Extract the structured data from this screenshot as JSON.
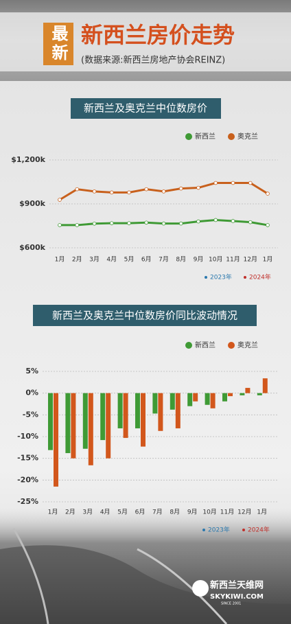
{
  "header": {
    "badge": "最新",
    "title": "新西兰房价走势",
    "subtitle": "(数据来源:新西兰房地产协会REINZ)"
  },
  "chart_data": [
    {
      "type": "line",
      "title": "新西兰及奥克兰中位数房价",
      "categories": [
        "1月",
        "2月",
        "3月",
        "4月",
        "5月",
        "6月",
        "7月",
        "8月",
        "9月",
        "10月",
        "11月",
        "12月",
        "1月"
      ],
      "series": [
        {
          "name": "新西兰",
          "color": "#3f9a35",
          "values": [
            755,
            755,
            765,
            768,
            768,
            772,
            766,
            766,
            780,
            790,
            783,
            775,
            755
          ]
        },
        {
          "name": "奥克兰",
          "color": "#c8601c",
          "values": [
            928,
            1000,
            985,
            978,
            978,
            1000,
            985,
            1005,
            1010,
            1043,
            1043,
            1043,
            970
          ]
        }
      ],
      "ylim": [
        600,
        1200
      ],
      "yticks": [
        {
          "value": 600,
          "label": "$600k"
        },
        {
          "value": 900,
          "label": "$900k"
        },
        {
          "value": 1200,
          "label": "$1,200k"
        }
      ],
      "grid": true,
      "periods": [
        {
          "name": "2023年",
          "color": "#2a78ad"
        },
        {
          "name": "2024年",
          "color": "#c0302b"
        }
      ]
    },
    {
      "type": "bar",
      "title": "新西兰及奥克兰中位数房价同比波动情况",
      "categories": [
        "1月",
        "2月",
        "3月",
        "4月",
        "5月",
        "6月",
        "7月",
        "8月",
        "9月",
        "10月",
        "11月",
        "12月",
        "1月"
      ],
      "series": [
        {
          "name": "新西兰",
          "color": "#3f9a35",
          "values": [
            -13.1,
            -13.8,
            -12.8,
            -10.8,
            -8.1,
            -8.1,
            -4.7,
            -3.8,
            -3.0,
            -2.7,
            -1.9,
            -0.5,
            -0.5
          ]
        },
        {
          "name": "奥克兰",
          "color": "#d2571c",
          "values": [
            -21.5,
            -15.0,
            -16.6,
            -15.0,
            -10.3,
            -12.3,
            -8.7,
            -8.1,
            -1.9,
            -3.5,
            -0.7,
            1.2,
            3.4
          ]
        }
      ],
      "ylim": [
        -25,
        5
      ],
      "yticks": [
        {
          "value": 5,
          "label": "5%"
        },
        {
          "value": 0,
          "label": "0%"
        },
        {
          "value": -5,
          "label": "-5%"
        },
        {
          "value": -10,
          "label": "-10%"
        },
        {
          "value": -15,
          "label": "-15%"
        },
        {
          "value": -20,
          "label": "-20%"
        },
        {
          "value": -25,
          "label": "-25%"
        }
      ],
      "grid": true,
      "periods": [
        {
          "name": "2023年",
          "color": "#2a78ad"
        },
        {
          "name": "2024年",
          "color": "#c0302b"
        }
      ]
    }
  ],
  "footer": {
    "brand": "新西兰天维网",
    "site": "SKYKIWI.COM",
    "since": "SINCE 2001"
  }
}
